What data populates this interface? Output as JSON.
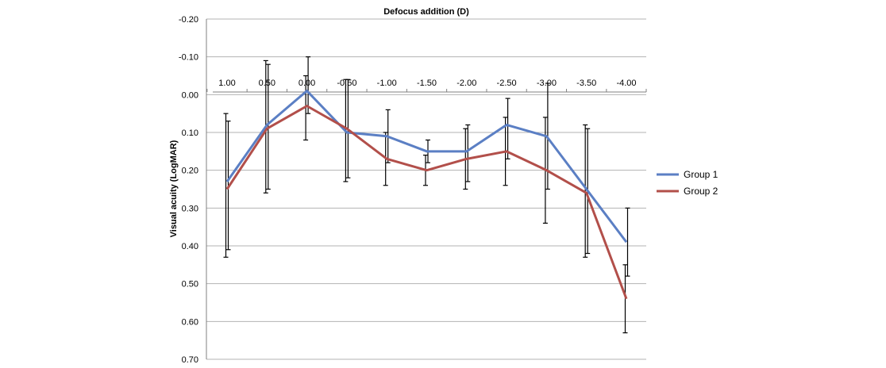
{
  "chart_data": {
    "type": "line",
    "title": "",
    "xlabel": "Defocus addition (D)",
    "ylabel": "Visual acuity (LogMAR)",
    "categories": [
      "1.00",
      "0.50",
      "0.00",
      "-0.50",
      "-1.00",
      "-1.50",
      "-2.00",
      "-2.50",
      "-3.00",
      "-3.50",
      "-4.00"
    ],
    "ylim": [
      -0.2,
      0.7
    ],
    "y_axis_inverted": true,
    "y_ticks": [
      -0.2,
      -0.1,
      0.0,
      0.1,
      0.2,
      0.3,
      0.4,
      0.5,
      0.6,
      0.7
    ],
    "y_tick_labels": [
      "-0.20",
      "-0.10",
      "0.00",
      "0.10",
      "0.20",
      "0.30",
      "0.40",
      "0.50",
      "0.60",
      "0.70"
    ],
    "grid": "horizontal",
    "legend": "right",
    "series": [
      {
        "name": "Group 1",
        "color": "#5b7fc4",
        "values": [
          0.23,
          0.08,
          -0.01,
          0.1,
          0.11,
          0.15,
          0.15,
          0.08,
          0.11,
          0.25,
          0.39
        ],
        "error_low": [
          0.07,
          -0.08,
          -0.1,
          -0.04,
          0.04,
          0.12,
          0.08,
          0.01,
          -0.03,
          0.09,
          0.3
        ],
        "error_high": [
          0.41,
          0.25,
          0.05,
          0.22,
          0.18,
          0.18,
          0.23,
          0.17,
          0.25,
          0.42,
          0.48
        ]
      },
      {
        "name": "Group 2",
        "color": "#b24f4a",
        "values": [
          0.25,
          0.09,
          0.03,
          0.09,
          0.17,
          0.2,
          0.17,
          0.15,
          0.2,
          0.26,
          0.54
        ],
        "error_low": [
          0.05,
          -0.09,
          -0.05,
          -0.04,
          0.1,
          0.16,
          0.09,
          0.06,
          0.06,
          0.08,
          0.45
        ],
        "error_high": [
          0.43,
          0.26,
          0.12,
          0.23,
          0.24,
          0.24,
          0.25,
          0.24,
          0.34,
          0.43,
          0.63
        ]
      }
    ]
  }
}
